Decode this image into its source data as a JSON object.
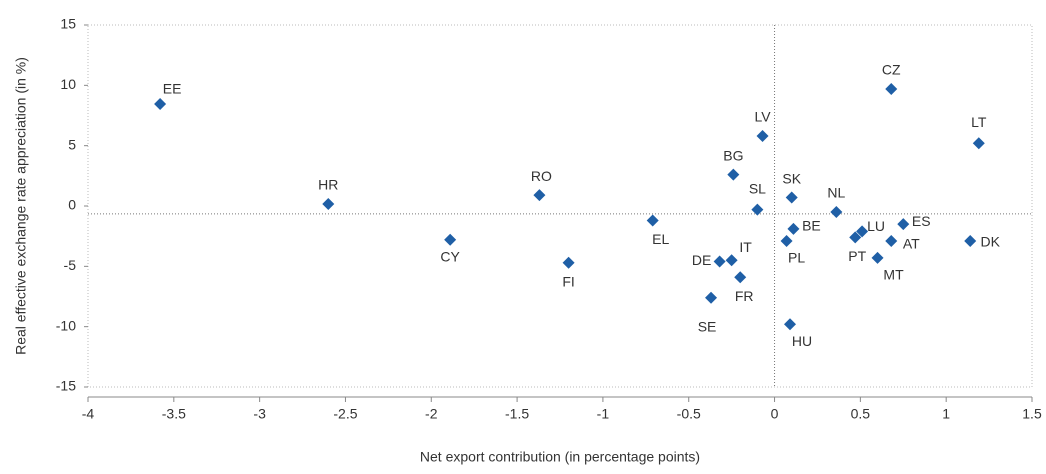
{
  "chart_data": {
    "type": "scatter",
    "xlabel": "Net export contribution (in percentage points)",
    "ylabel": "Real effective exchange rate  appreciation (in %)",
    "color": "#1f5fa6",
    "labels": [
      "EE",
      "HR",
      "CY",
      "RO",
      "FI",
      "EL",
      "BG",
      "LV",
      "SL",
      "DE",
      "IT",
      "FR",
      "SE",
      "HU",
      "SK",
      "BE",
      "PL",
      "NL",
      "PT",
      "LU",
      "ES",
      "AT",
      "MT",
      "CZ",
      "LT",
      "DK"
    ],
    "x": [
      -3.58,
      -2.6,
      -1.89,
      -1.37,
      -1.2,
      -0.71,
      -0.24,
      -0.07,
      -0.1,
      -0.32,
      -0.25,
      -0.2,
      -0.37,
      0.09,
      0.1,
      0.11,
      0.07,
      0.36,
      0.47,
      0.51,
      0.75,
      0.68,
      0.6,
      0.68,
      1.19,
      1.14
    ],
    "values": [
      8.45,
      0.17,
      -2.8,
      0.9,
      -4.7,
      -1.2,
      2.6,
      5.8,
      -0.3,
      -4.6,
      -4.5,
      -5.9,
      -7.6,
      -9.8,
      0.7,
      -1.9,
      -2.9,
      -0.5,
      -2.6,
      -2.1,
      -1.5,
      -2.9,
      -4.3,
      9.7,
      5.2,
      -2.9
    ],
    "xlim": [
      -4,
      1.5
    ],
    "xticks": [
      -4,
      -3.5,
      -3,
      -2.5,
      -2,
      -1.5,
      -1,
      -0.5,
      0,
      0.5,
      1,
      1.5
    ],
    "ylim": [
      -15,
      15
    ],
    "yticks": [
      -15,
      -10,
      -5,
      0,
      5,
      10,
      15
    ],
    "reference_lines": {
      "x": 0,
      "y": -0.65
    }
  }
}
